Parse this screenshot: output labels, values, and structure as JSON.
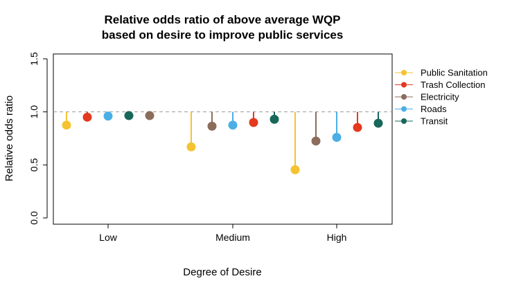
{
  "chart_data": {
    "type": "scatter",
    "title": [
      "Relative odds ratio of above average WQP",
      "based on desire to improve public services"
    ],
    "xlabel": "Degree of Desire",
    "ylabel": "Relative odds ratio",
    "categories": [
      "Low",
      "Medium",
      "High"
    ],
    "ylim": [
      0,
      1.5
    ],
    "yticks": [
      "0.0",
      "0.5",
      "1.0",
      "1.5"
    ],
    "reference_line": 1.0,
    "legend_position": "right",
    "series": [
      {
        "name": "Public Sanitation",
        "color": "#F5C330",
        "values": [
          0.875,
          0.67,
          0.455
        ]
      },
      {
        "name": "Trash Collection",
        "color": "#E3391E",
        "values": [
          0.95,
          0.9,
          0.853
        ]
      },
      {
        "name": "Electricity",
        "color": "#8C6D5C",
        "values": [
          0.965,
          0.865,
          0.725
        ]
      },
      {
        "name": "Roads",
        "color": "#4BAFE6",
        "values": [
          0.96,
          0.875,
          0.76
        ]
      },
      {
        "name": "Transit",
        "color": "#17675A",
        "values": [
          0.965,
          0.93,
          0.893
        ]
      }
    ],
    "point_order": [
      {
        "category": "Low",
        "series_order": [
          "Public Sanitation",
          "Trash Collection",
          "Roads",
          "Transit",
          "Electricity"
        ]
      },
      {
        "category": "Medium",
        "series_order": [
          "Public Sanitation",
          "Electricity",
          "Roads",
          "Trash Collection",
          "Transit"
        ]
      },
      {
        "category": "High",
        "series_order": [
          "Public Sanitation",
          "Electricity",
          "Roads",
          "Trash Collection",
          "Transit"
        ]
      }
    ]
  }
}
